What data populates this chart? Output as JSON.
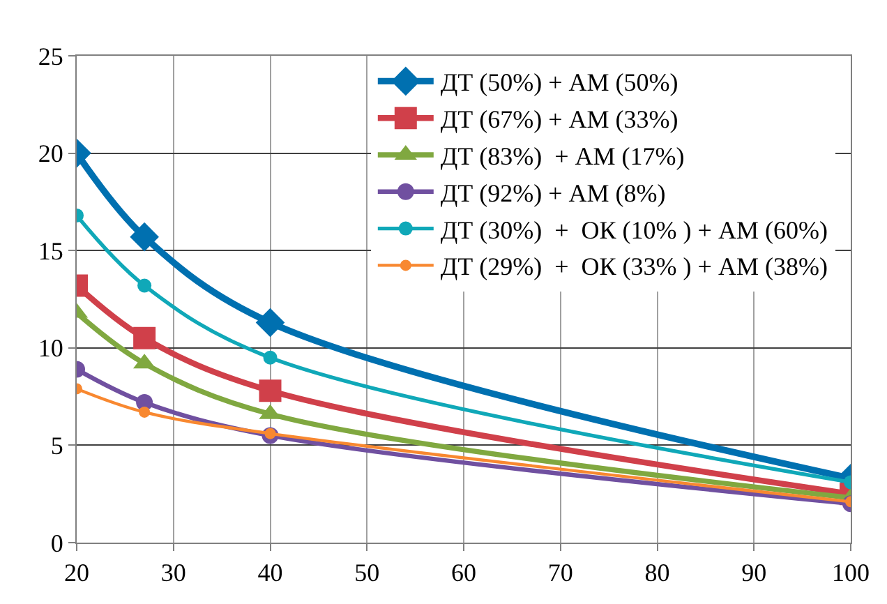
{
  "chart_data": {
    "type": "line",
    "x": [
      20,
      27,
      40,
      100
    ],
    "series": [
      {
        "name": "ДТ (50%) + АМ (50%)",
        "color": "#0070b0",
        "marker": "diamond",
        "values": [
          20,
          15.7,
          11.3,
          3.3
        ]
      },
      {
        "name": "ДТ (67%) + АМ (33%)",
        "color": "#d0404a",
        "marker": "square",
        "values": [
          13.2,
          10.5,
          7.8,
          2.5
        ]
      },
      {
        "name": "ДТ (83%)  + АМ (17%)",
        "color": "#80a840",
        "marker": "triangle",
        "values": [
          11.8,
          9.2,
          6.6,
          2.3
        ]
      },
      {
        "name": "ДТ (92%) + АМ (8%)",
        "color": "#7050a0",
        "marker": "circle",
        "values": [
          8.9,
          7.2,
          5.5,
          2.0
        ]
      },
      {
        "name": "ДТ (30%)  +  ОК (10% ) + АМ (60%)",
        "color": "#10a8b8",
        "marker": "circle",
        "values": [
          16.8,
          13.2,
          9.5,
          3.1
        ]
      },
      {
        "name": "ДТ (29%)  +  ОК (33% ) + АМ (38%)",
        "color": "#f88830",
        "marker": "circle",
        "values": [
          7.9,
          6.7,
          5.6,
          2.1
        ]
      }
    ],
    "xlim": [
      20,
      100
    ],
    "xticks": [
      20,
      30,
      40,
      50,
      60,
      70,
      80,
      90,
      100
    ],
    "ylim": [
      0,
      25
    ],
    "yticks": [
      0,
      5,
      10,
      15,
      20,
      25
    ],
    "grid": true,
    "legend": "top right",
    "line_style": "solid"
  }
}
